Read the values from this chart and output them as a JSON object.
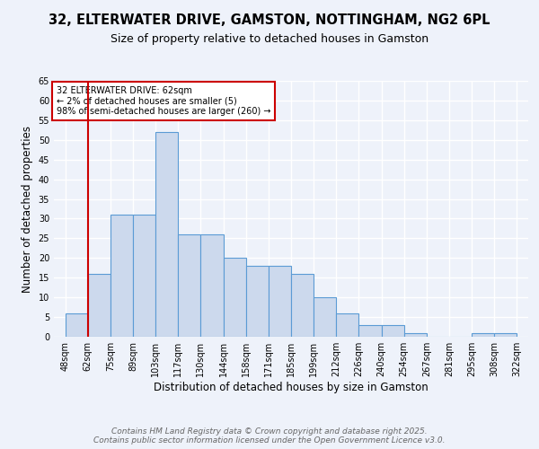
{
  "title": "32, ELTERWATER DRIVE, GAMSTON, NOTTINGHAM, NG2 6PL",
  "subtitle": "Size of property relative to detached houses in Gamston",
  "xlabel": "Distribution of detached houses by size in Gamston",
  "ylabel": "Number of detached properties",
  "bar_values": [
    6,
    16,
    31,
    31,
    52,
    26,
    26,
    20,
    18,
    18,
    16,
    10,
    6,
    3,
    3,
    1,
    0,
    0,
    1,
    1
  ],
  "categories": [
    "48sqm",
    "62sqm",
    "75sqm",
    "89sqm",
    "103sqm",
    "117sqm",
    "130sqm",
    "144sqm",
    "158sqm",
    "171sqm",
    "185sqm",
    "199sqm",
    "212sqm",
    "226sqm",
    "240sqm",
    "254sqm",
    "267sqm",
    "281sqm",
    "295sqm",
    "308sqm",
    "322sqm"
  ],
  "bar_color": "#ccd9ed",
  "bar_edge_color": "#5b9bd5",
  "highlight_index": 1,
  "highlight_color": "#cc0000",
  "annotation_title": "32 ELTERWATER DRIVE: 62sqm",
  "annotation_line1": "← 2% of detached houses are smaller (5)",
  "annotation_line2": "98% of semi-detached houses are larger (260) →",
  "ylim": [
    0,
    65
  ],
  "yticks": [
    0,
    5,
    10,
    15,
    20,
    25,
    30,
    35,
    40,
    45,
    50,
    55,
    60,
    65
  ],
  "footer_line1": "Contains HM Land Registry data © Crown copyright and database right 2025.",
  "footer_line2": "Contains public sector information licensed under the Open Government Licence v3.0.",
  "background_color": "#eef2fa",
  "grid_color": "#ffffff",
  "title_fontsize": 10.5,
  "subtitle_fontsize": 9,
  "axis_label_fontsize": 8.5,
  "tick_fontsize": 7,
  "footer_fontsize": 6.5,
  "annotation_fontsize": 7
}
